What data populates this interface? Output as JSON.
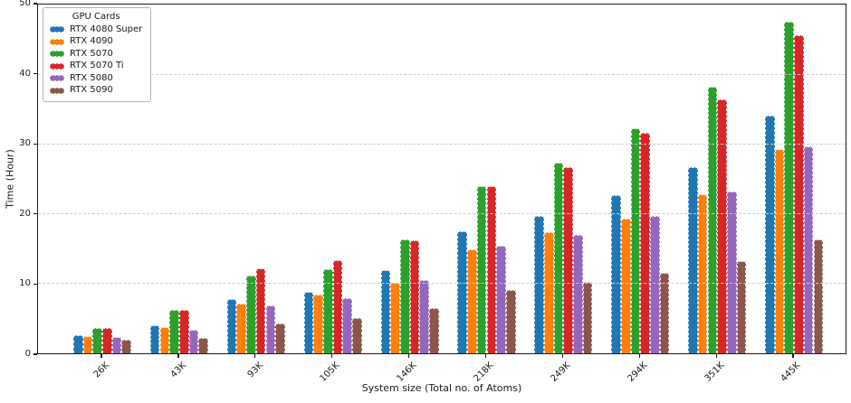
{
  "chart_data": {
    "type": "bar",
    "title": "",
    "xlabel": "System size (Total no. of Atoms)",
    "ylabel": "Time (Hour)",
    "ylim": [
      0,
      50
    ],
    "yticks": [
      0,
      10,
      20,
      30,
      40,
      50
    ],
    "grid": "horizontal-dashed",
    "legend_title": "GPU Cards",
    "legend_position": "upper-left",
    "categories": [
      "26K",
      "43K",
      "93K",
      "105K",
      "146K",
      "218K",
      "249K",
      "294K",
      "351K",
      "445K"
    ],
    "series": [
      {
        "name": "RTX 4080 Super",
        "color": "#1f77b4",
        "values": [
          2.6,
          4.0,
          7.8,
          8.8,
          11.9,
          17.5,
          19.8,
          22.7,
          26.8,
          34.1
        ]
      },
      {
        "name": "RTX 4090",
        "color": "#ff7f0e",
        "values": [
          2.5,
          3.8,
          7.2,
          8.4,
          10.1,
          14.9,
          17.4,
          19.4,
          22.9,
          29.3
        ]
      },
      {
        "name": "RTX 5070",
        "color": "#2ca02c",
        "values": [
          3.7,
          6.3,
          11.2,
          12.1,
          16.4,
          24.0,
          27.4,
          32.3,
          38.3,
          47.7
        ]
      },
      {
        "name": "RTX 5070 Ti",
        "color": "#d62728",
        "values": [
          3.7,
          6.2,
          12.2,
          13.4,
          16.2,
          24.0,
          26.8,
          31.7,
          36.5,
          45.7
        ]
      },
      {
        "name": "RTX 5080",
        "color": "#9467bd",
        "values": [
          2.4,
          3.4,
          6.9,
          7.9,
          10.5,
          15.4,
          17.0,
          19.8,
          23.3,
          29.8
        ]
      },
      {
        "name": "RTX 5090",
        "color": "#8c564b",
        "values": [
          1.9,
          2.2,
          4.3,
          5.1,
          6.5,
          9.1,
          10.3,
          11.5,
          13.3,
          16.4
        ]
      }
    ]
  }
}
